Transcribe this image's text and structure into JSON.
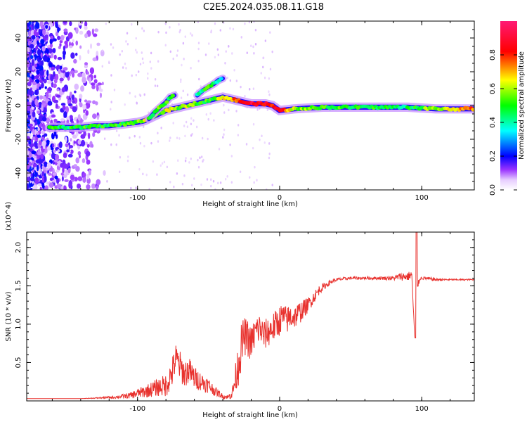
{
  "title": "C2E5.2024.035.08.11.G18",
  "colorbar": {
    "label": "Normalized spectral amplitude",
    "ticks": [
      0.0,
      0.2,
      0.4,
      0.6,
      0.8
    ],
    "tick_labels": [
      "0.0",
      "0.2",
      "0.4",
      "0.6",
      "0.8"
    ],
    "range": [
      0,
      1
    ],
    "colors": [
      "#ffffff",
      "#cc88ff",
      "#7700dd",
      "#0000ff",
      "#00ffff",
      "#00ff00",
      "#ffff00",
      "#ff0000",
      "#ff1493"
    ]
  },
  "chart_data": [
    {
      "type": "heatmap",
      "name": "spectrogram",
      "xlabel": "Height of straight line (km)",
      "ylabel": "Frequency (Hz)",
      "xlim": [
        -178,
        137
      ],
      "ylim": [
        -50,
        50
      ],
      "xticks": [
        -100,
        0,
        100
      ],
      "xtick_labels": [
        "-100",
        "0",
        "100"
      ],
      "yticks": [
        -40,
        -20,
        0,
        20,
        40
      ],
      "ytick_labels": [
        "-40",
        "-20",
        "0",
        "20",
        "40"
      ],
      "grid": false,
      "main_track": {
        "x": [
          -162,
          -150,
          -140,
          -130,
          -120,
          -110,
          -100,
          -95,
          -90,
          -85,
          -80,
          -75,
          -70,
          -65,
          -60,
          -55,
          -50,
          -45,
          -40,
          -35,
          -30,
          -25,
          -20,
          -15,
          -10,
          -5,
          0,
          10,
          30,
          60,
          90,
          110,
          137
        ],
        "y": [
          -13,
          -13,
          -13,
          -12,
          -12,
          -11,
          -10,
          -9,
          -7,
          -5,
          -3,
          -2,
          -1,
          0,
          1,
          2,
          3,
          4,
          5,
          4,
          3,
          2,
          1,
          1,
          1,
          0,
          -3,
          -2,
          -1,
          -1,
          -1,
          -2,
          -2
        ],
        "amplitude": [
          0.5,
          0.45,
          0.5,
          0.5,
          0.5,
          0.5,
          0.55,
          0.6,
          0.6,
          0.55,
          0.6,
          0.6,
          0.5,
          0.6,
          0.6,
          0.5,
          0.5,
          0.55,
          0.65,
          0.7,
          0.8,
          0.85,
          0.9,
          0.85,
          0.85,
          0.8,
          0.85,
          0.6,
          0.5,
          0.5,
          0.45,
          0.6,
          0.75
        ]
      },
      "branch_track": {
        "x": [
          -92,
          -88,
          -84,
          -80,
          -77,
          -74
        ],
        "y": [
          -8,
          -4,
          -1,
          2,
          5,
          6
        ],
        "amplitude": [
          0.45,
          0.5,
          0.55,
          0.5,
          0.5,
          0.45
        ]
      },
      "upper_track": {
        "x": [
          -58,
          -54,
          -50,
          -46,
          -43,
          -40
        ],
        "y": [
          6,
          9,
          11,
          13,
          15,
          16
        ],
        "amplitude": [
          0.4,
          0.45,
          0.5,
          0.45,
          0.4,
          0.35
        ]
      }
    },
    {
      "type": "line",
      "name": "snr",
      "xlabel": "Height of straight line (km)",
      "ylabel": "SNR (10 * v/v)",
      "y_multiplier": "(x10^4)",
      "xlim": [
        -178,
        137
      ],
      "ylim": [
        0,
        2.2
      ],
      "xticks": [
        -100,
        0,
        100
      ],
      "xtick_labels": [
        "-100",
        "0",
        "100"
      ],
      "yticks": [
        0.5,
        1.0,
        1.5,
        2.0
      ],
      "ytick_labels": [
        "0.5",
        "1.0",
        "1.5",
        "2.0"
      ],
      "grid": false,
      "color": "#e8312d",
      "series": [
        {
          "x": [
            -178,
            -160,
            -140,
            -125,
            -115,
            -105,
            -100,
            -95,
            -90,
            -85,
            -80,
            -76,
            -73,
            -70,
            -67,
            -64,
            -60,
            -55,
            -50,
            -45,
            -40,
            -36,
            -33,
            -31,
            -29,
            -27,
            -25,
            -22,
            -20,
            -17,
            -14,
            -11,
            -8,
            -5,
            -2,
            0,
            2,
            5,
            8,
            11,
            14,
            17,
            20,
            24,
            28,
            32,
            36,
            40,
            50,
            60,
            70,
            80,
            85,
            90,
            93,
            95,
            96,
            97,
            99,
            102,
            110,
            120,
            130,
            137
          ],
          "y": [
            0.03,
            0.03,
            0.03,
            0.04,
            0.05,
            0.07,
            0.1,
            0.12,
            0.15,
            0.18,
            0.2,
            0.35,
            0.55,
            0.45,
            0.35,
            0.4,
            0.3,
            0.25,
            0.2,
            0.12,
            0.06,
            0.05,
            0.12,
            0.3,
            0.5,
            0.7,
            0.85,
            0.8,
            0.75,
            0.9,
            0.95,
            0.85,
            0.9,
            0.95,
            1.0,
            1.05,
            1.1,
            1.05,
            1.1,
            1.1,
            1.15,
            1.2,
            1.25,
            1.35,
            1.45,
            1.5,
            1.55,
            1.58,
            1.6,
            1.6,
            1.6,
            1.6,
            1.62,
            1.62,
            1.65,
            0.85,
            2.2,
            1.5,
            1.6,
            1.6,
            1.58,
            1.58,
            1.58,
            1.58
          ],
          "noise": [
            0,
            0,
            0,
            0.01,
            0.02,
            0.04,
            0.06,
            0.08,
            0.1,
            0.12,
            0.15,
            0.2,
            0.2,
            0.2,
            0.18,
            0.18,
            0.15,
            0.12,
            0.1,
            0.06,
            0.03,
            0.03,
            0.1,
            0.2,
            0.3,
            0.3,
            0.25,
            0.25,
            0.22,
            0.22,
            0.2,
            0.2,
            0.2,
            0.2,
            0.2,
            0.2,
            0.18,
            0.18,
            0.18,
            0.15,
            0.15,
            0.12,
            0.1,
            0.08,
            0.06,
            0.04,
            0.03,
            0.02,
            0.02,
            0.02,
            0.02,
            0.03,
            0.05,
            0.06,
            0.05,
            0,
            0,
            0.05,
            0.02,
            0.02,
            0.02,
            0.01,
            0.01,
            0.01
          ]
        }
      ]
    }
  ]
}
